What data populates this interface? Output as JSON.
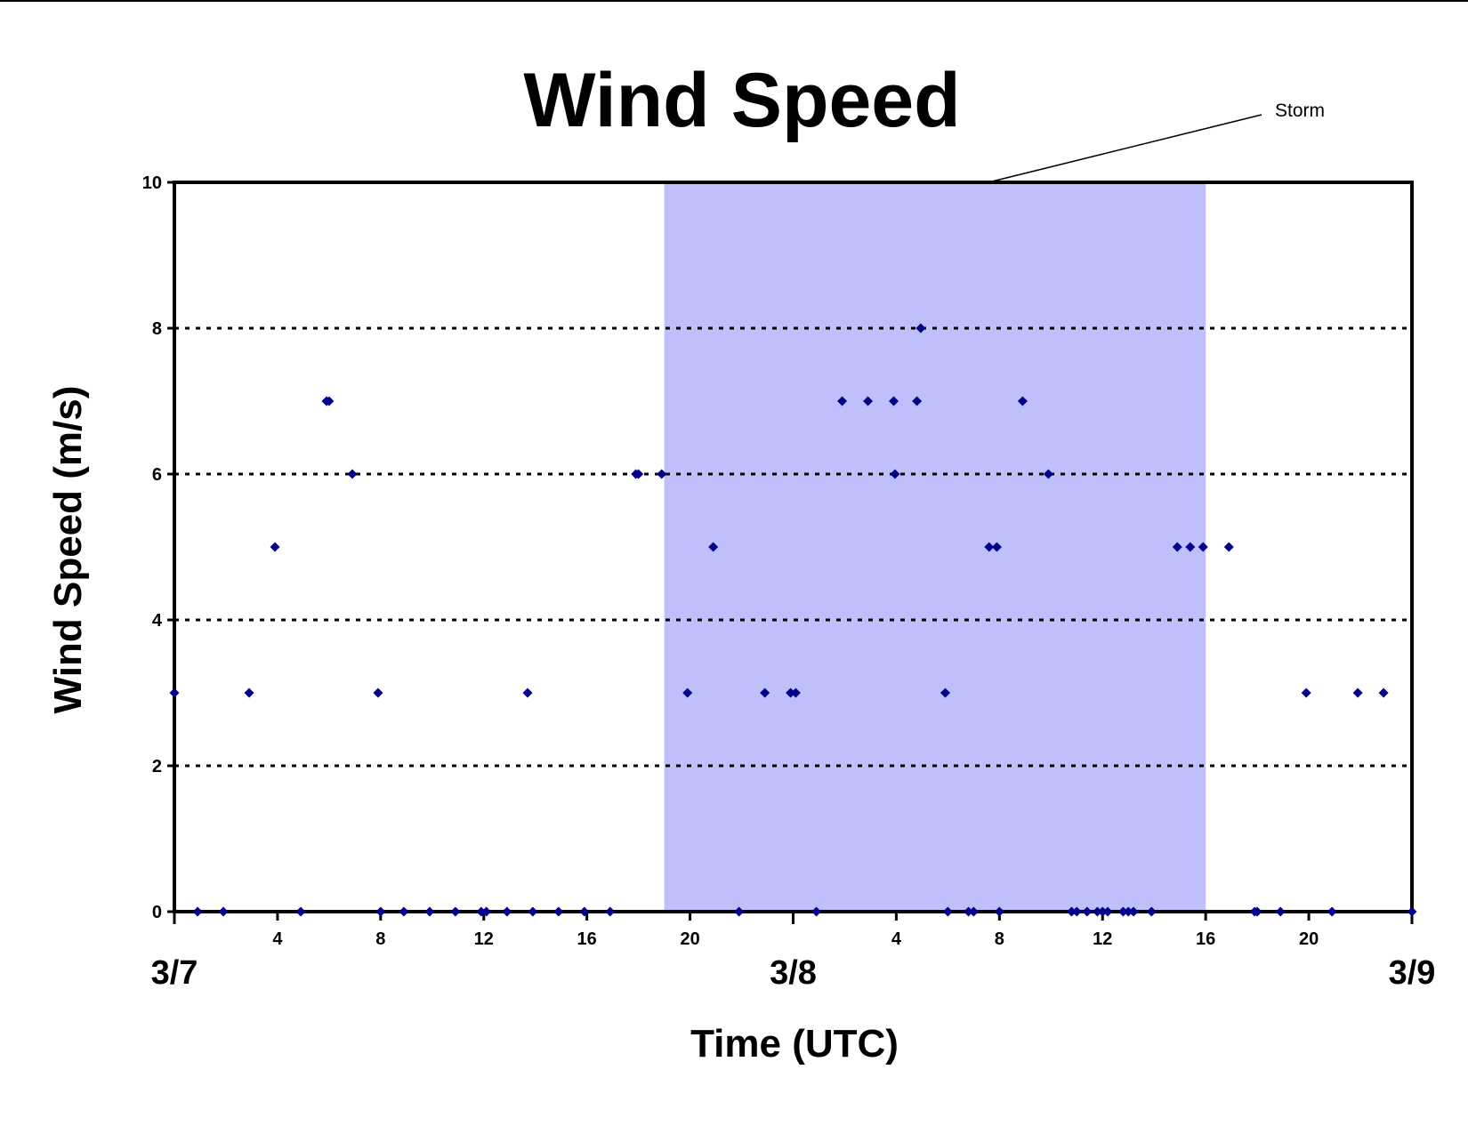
{
  "chart_data": {
    "type": "scatter",
    "title": "Wind Speed",
    "xlabel": "Time (UTC)",
    "ylabel": "Wind Speed (m/s)",
    "xlim": [
      0,
      48
    ],
    "ylim": [
      0,
      10
    ],
    "y_ticks": [
      0,
      2,
      4,
      6,
      8,
      10
    ],
    "x_hour_ticks": [
      {
        "x": 4,
        "label": "4"
      },
      {
        "x": 8,
        "label": "8"
      },
      {
        "x": 12,
        "label": "12"
      },
      {
        "x": 16,
        "label": "16"
      },
      {
        "x": 20,
        "label": "20"
      },
      {
        "x": 28,
        "label": "4"
      },
      {
        "x": 32,
        "label": "8"
      },
      {
        "x": 36,
        "label": "12"
      },
      {
        "x": 40,
        "label": "16"
      },
      {
        "x": 44,
        "label": "20"
      }
    ],
    "x_day_labels": [
      {
        "x": 0,
        "label": "3/7"
      },
      {
        "x": 24,
        "label": "3/8"
      },
      {
        "x": 48,
        "label": "3/9"
      }
    ],
    "grid": "horizontal dotted",
    "marker_color": "#00008B",
    "band_color": "#BFBFFB",
    "annotation": {
      "text": "Storm",
      "x_start": 19,
      "x_end": 40
    },
    "series": [
      {
        "points": [
          {
            "x": 0,
            "y": 3
          },
          {
            "x": 0.9,
            "y": 0
          },
          {
            "x": 1.9,
            "y": 0
          },
          {
            "x": 2.9,
            "y": 3
          },
          {
            "x": 3.9,
            "y": 5
          },
          {
            "x": 4.9,
            "y": 0
          },
          {
            "x": 5.9,
            "y": 7
          },
          {
            "x": 6.0,
            "y": 7
          },
          {
            "x": 6.9,
            "y": 6
          },
          {
            "x": 7.9,
            "y": 3
          },
          {
            "x": 8.0,
            "y": 0
          },
          {
            "x": 8.9,
            "y": 0
          },
          {
            "x": 9.9,
            "y": 0
          },
          {
            "x": 10.9,
            "y": 0
          },
          {
            "x": 11.9,
            "y": 0
          },
          {
            "x": 12.1,
            "y": 0
          },
          {
            "x": 12.9,
            "y": 0
          },
          {
            "x": 13.7,
            "y": 3
          },
          {
            "x": 13.9,
            "y": 0
          },
          {
            "x": 14.9,
            "y": 0
          },
          {
            "x": 15.9,
            "y": 0
          },
          {
            "x": 16.9,
            "y": 0
          },
          {
            "x": 17.9,
            "y": 6
          },
          {
            "x": 18.0,
            "y": 6
          },
          {
            "x": 18.9,
            "y": 6
          },
          {
            "x": 19.9,
            "y": 3
          },
          {
            "x": 20.9,
            "y": 5
          },
          {
            "x": 21.9,
            "y": 0
          },
          {
            "x": 22.9,
            "y": 3
          },
          {
            "x": 23.9,
            "y": 3
          },
          {
            "x": 24.1,
            "y": 3
          },
          {
            "x": 24.9,
            "y": 0
          },
          {
            "x": 25.9,
            "y": 7
          },
          {
            "x": 26.9,
            "y": 7
          },
          {
            "x": 27.9,
            "y": 7
          },
          {
            "x": 27.95,
            "y": 6
          },
          {
            "x": 28.8,
            "y": 7
          },
          {
            "x": 28.95,
            "y": 8
          },
          {
            "x": 29.9,
            "y": 3
          },
          {
            "x": 30.0,
            "y": 0
          },
          {
            "x": 30.8,
            "y": 0
          },
          {
            "x": 31.0,
            "y": 0
          },
          {
            "x": 31.6,
            "y": 5
          },
          {
            "x": 31.9,
            "y": 5
          },
          {
            "x": 32.0,
            "y": 0
          },
          {
            "x": 32.9,
            "y": 7
          },
          {
            "x": 33.9,
            "y": 6
          },
          {
            "x": 34.8,
            "y": 0
          },
          {
            "x": 35.0,
            "y": 0
          },
          {
            "x": 35.4,
            "y": 0
          },
          {
            "x": 35.8,
            "y": 0
          },
          {
            "x": 36.0,
            "y": 0
          },
          {
            "x": 36.2,
            "y": 0
          },
          {
            "x": 36.8,
            "y": 0
          },
          {
            "x": 37.0,
            "y": 0
          },
          {
            "x": 37.2,
            "y": 0
          },
          {
            "x": 37.9,
            "y": 0
          },
          {
            "x": 38.9,
            "y": 5
          },
          {
            "x": 39.4,
            "y": 5
          },
          {
            "x": 39.9,
            "y": 5
          },
          {
            "x": 40.9,
            "y": 5
          },
          {
            "x": 41.9,
            "y": 0
          },
          {
            "x": 42.0,
            "y": 0
          },
          {
            "x": 42.9,
            "y": 0
          },
          {
            "x": 43.9,
            "y": 3
          },
          {
            "x": 44.9,
            "y": 0
          },
          {
            "x": 45.9,
            "y": 3
          },
          {
            "x": 46.9,
            "y": 3
          },
          {
            "x": 48.0,
            "y": 0
          }
        ]
      }
    ]
  }
}
